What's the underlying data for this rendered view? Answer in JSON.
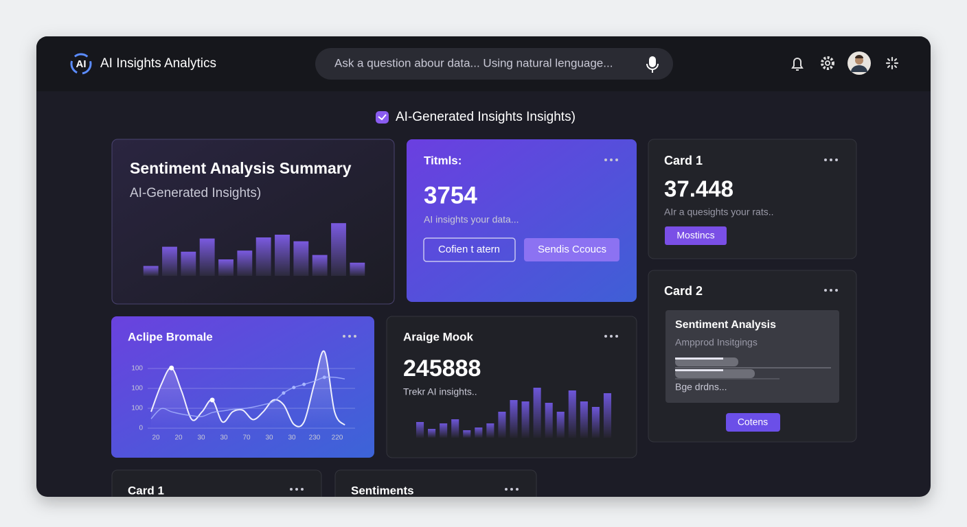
{
  "header": {
    "logo": "AI",
    "title": "AI Insights Analytics",
    "search_placeholder": "Ask a question abour data... Using natural lenguage..."
  },
  "section_title": "AI-Generated Insights Insights)",
  "cards": {
    "sentiment_summary": {
      "title": "Sentiment Analysis Summary",
      "subtitle": "AI-Generated Insights)",
      "chart": {
        "type": "bar",
        "values": [
          18,
          53,
          44,
          68,
          30,
          46,
          70,
          75,
          63,
          38,
          96,
          24
        ],
        "ylim": [
          0,
          100
        ]
      }
    },
    "titmls": {
      "title": "Titmls:",
      "value": 3754,
      "caption": "AI insights your data...",
      "button_outline": "Cofien t atern",
      "button_fill": "Sendis Ccoucs"
    },
    "card1": {
      "title": "Card 1",
      "value": 37.448,
      "caption": "AIr a quesights your rats..",
      "button": "Mostincs"
    },
    "card2": {
      "title": "Card 2",
      "panel_title": "Sentiment Analysis",
      "panel_subtitle": "Ampprod Insitgings",
      "panel_footer": "Bge drdns...",
      "button": "Cotens"
    },
    "aclipe": {
      "title": "Aclipe Bromale",
      "chart": {
        "type": "line",
        "y_labels": [
          "100",
          "100",
          "100",
          "0"
        ],
        "x_labels": [
          "20",
          "20",
          "30",
          "30",
          "70",
          "30",
          "30",
          "230",
          "220"
        ],
        "ylim": [
          0,
          100
        ],
        "series": [
          {
            "color": "#ffffff",
            "values": [
              21,
              56,
              77,
              47,
              11,
              21,
              36,
              8,
              21,
              23,
              11,
              21,
              36,
              30,
              5,
              8,
              56,
              98,
              21,
              4
            ]
          },
          {
            "color": "#a9b6ff",
            "values": [
              12,
              25,
              21,
              18,
              16,
              15,
              20,
              22,
              24,
              25,
              27,
              30,
              34,
              45,
              52,
              56,
              60,
              65,
              65,
              63
            ]
          }
        ]
      }
    },
    "araige": {
      "title": "Araige Mook",
      "value": 245888,
      "caption": "Trekr AI insights..",
      "chart": {
        "type": "bar",
        "values": [
          23,
          13,
          21,
          27,
          11,
          15,
          21,
          38,
          55,
          53,
          73,
          51,
          38,
          69,
          53,
          45,
          65
        ],
        "ylim": [
          0,
          80
        ]
      }
    },
    "bottom_card1": {
      "title": "Card 1"
    },
    "sentiments": {
      "title": "Sentiments"
    }
  }
}
